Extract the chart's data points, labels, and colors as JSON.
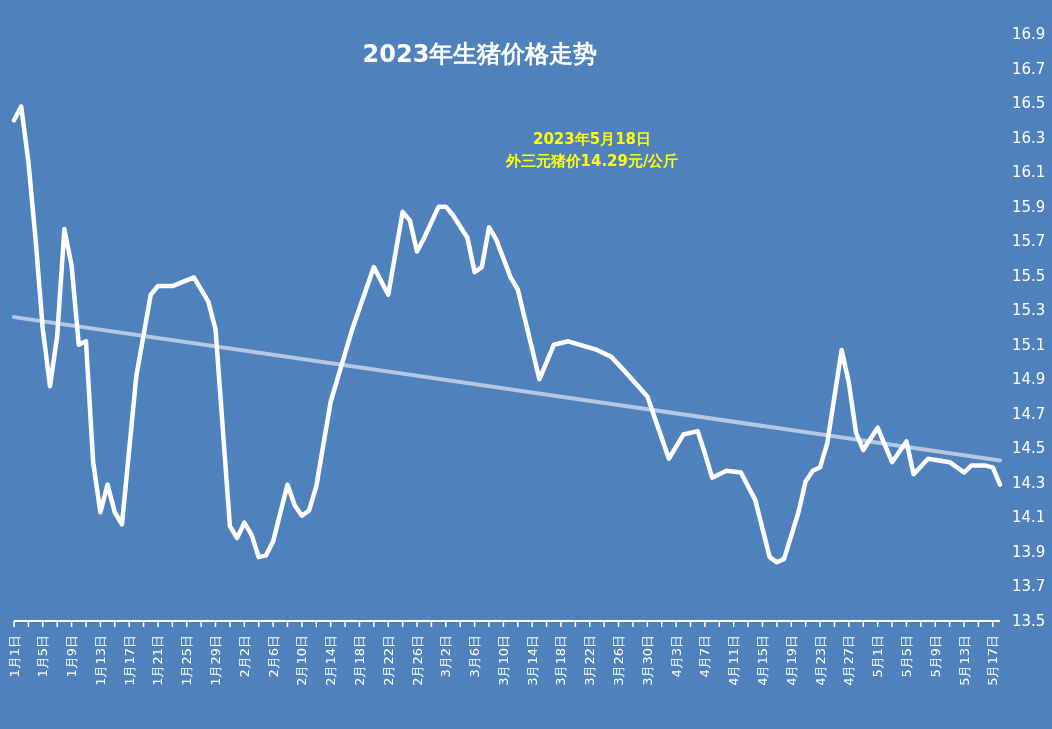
{
  "chart_data": {
    "type": "line",
    "title": "2023年生猪价格走势",
    "annotations": [
      "2023年5月18日",
      "外三元猪价14.29元/公斤"
    ],
    "xlim": [
      "--01-01",
      "--05-18"
    ],
    "xticks": [
      {
        "value": "--01-01",
        "label": "1月1日"
      },
      {
        "value": "--01-03",
        "label": null
      },
      {
        "value": "--01-05",
        "label": "1月5日"
      },
      {
        "value": "--01-07",
        "label": null
      },
      {
        "value": "--01-09",
        "label": "1月9日"
      },
      {
        "value": "--01-11",
        "label": null
      },
      {
        "value": "--01-13",
        "label": "1月13日"
      },
      {
        "value": "--01-15",
        "label": null
      },
      {
        "value": "--01-17",
        "label": "1月17日"
      },
      {
        "value": "--01-19",
        "label": null
      },
      {
        "value": "--01-21",
        "label": "1月21日"
      },
      {
        "value": "--01-23",
        "label": null
      },
      {
        "value": "--01-25",
        "label": "1月25日"
      },
      {
        "value": "--01-27",
        "label": null
      },
      {
        "value": "--01-29",
        "label": "1月29日"
      },
      {
        "value": "--01-31",
        "label": null
      },
      {
        "value": "--02-02",
        "label": "2月2日"
      },
      {
        "value": "--02-04",
        "label": null
      },
      {
        "value": "--02-06",
        "label": "2月6日"
      },
      {
        "value": "--02-08",
        "label": null
      },
      {
        "value": "--02-10",
        "label": "2月10日"
      },
      {
        "value": "--02-12",
        "label": null
      },
      {
        "value": "--02-14",
        "label": "2月14日"
      },
      {
        "value": "--02-16",
        "label": null
      },
      {
        "value": "--02-18",
        "label": "2月18日"
      },
      {
        "value": "--02-20",
        "label": null
      },
      {
        "value": "--02-22",
        "label": "2月22日"
      },
      {
        "value": "--02-24",
        "label": null
      },
      {
        "value": "--02-26",
        "label": "2月26日"
      },
      {
        "value": "--02-28",
        "label": null
      },
      {
        "value": "--03-02",
        "label": "3月2日"
      },
      {
        "value": "--03-04",
        "label": null
      },
      {
        "value": "--03-06",
        "label": "3月6日"
      },
      {
        "value": "--03-08",
        "label": null
      },
      {
        "value": "--03-10",
        "label": "3月10日"
      },
      {
        "value": "--03-12",
        "label": null
      },
      {
        "value": "--03-14",
        "label": "3月14日"
      },
      {
        "value": "--03-16",
        "label": null
      },
      {
        "value": "--03-18",
        "label": "3月18日"
      },
      {
        "value": "--03-20",
        "label": null
      },
      {
        "value": "--03-22",
        "label": "3月22日"
      },
      {
        "value": "--03-24",
        "label": null
      },
      {
        "value": "--03-26",
        "label": "3月26日"
      },
      {
        "value": "--03-28",
        "label": null
      },
      {
        "value": "--03-30",
        "label": "3月30日"
      },
      {
        "value": "--04-01",
        "label": null
      },
      {
        "value": "--04-03",
        "label": "4月3日"
      },
      {
        "value": "--04-05",
        "label": null
      },
      {
        "value": "--04-07",
        "label": "4月7日"
      },
      {
        "value": "--04-09",
        "label": null
      },
      {
        "value": "--04-11",
        "label": "4月11日"
      },
      {
        "value": "--04-13",
        "label": null
      },
      {
        "value": "--04-15",
        "label": "4月15日"
      },
      {
        "value": "--04-17",
        "label": null
      },
      {
        "value": "--04-19",
        "label": "4月19日"
      },
      {
        "value": "--04-21",
        "label": null
      },
      {
        "value": "--04-23",
        "label": "4月23日"
      },
      {
        "value": "--04-25",
        "label": null
      },
      {
        "value": "--04-27",
        "label": "4月27日"
      },
      {
        "value": "--04-29",
        "label": null
      },
      {
        "value": "--05-01",
        "label": "5月1日"
      },
      {
        "value": "--05-03",
        "label": null
      },
      {
        "value": "--05-05",
        "label": "5月5日"
      },
      {
        "value": "--05-07",
        "label": null
      },
      {
        "value": "--05-09",
        "label": "5月9日"
      },
      {
        "value": "--05-11",
        "label": null
      },
      {
        "value": "--05-13",
        "label": "5月13日"
      },
      {
        "value": "--05-15",
        "label": null
      },
      {
        "value": "--05-17",
        "label": "5月17日"
      }
    ],
    "ylim": [
      13.5,
      16.9
    ],
    "yticks": [
      {
        "value": 13.5,
        "label": "13.5"
      },
      {
        "value": 13.7,
        "label": "13.7"
      },
      {
        "value": 13.9,
        "label": "13.9"
      },
      {
        "value": 14.1,
        "label": "14.1"
      },
      {
        "value": 14.3,
        "label": "14.3"
      },
      {
        "value": 14.5,
        "label": "14.5"
      },
      {
        "value": 14.7,
        "label": "14.7"
      },
      {
        "value": 14.9,
        "label": "14.9"
      },
      {
        "value": 15.1,
        "label": "15.1"
      },
      {
        "value": 15.3,
        "label": "15.3"
      },
      {
        "value": 15.5,
        "label": "15.5"
      },
      {
        "value": 15.7,
        "label": "15.7"
      },
      {
        "value": 15.9,
        "label": "15.9"
      },
      {
        "value": 16.1,
        "label": "16.1"
      },
      {
        "value": 16.3,
        "label": "16.3"
      },
      {
        "value": 16.5,
        "label": "16.5"
      },
      {
        "value": 16.7,
        "label": "16.7"
      },
      {
        "value": 16.9,
        "label": "16.9"
      }
    ],
    "series": [
      {
        "type": "line",
        "color": "#ffffff",
        "x": [
          "--01-01",
          "--01-02",
          "--01-03",
          "--01-04",
          "--01-05",
          "--01-06",
          "--01-07",
          "--01-08",
          "--01-09",
          "--01-10",
          "--01-11",
          "--01-12",
          "--01-13",
          "--01-14",
          "--01-15",
          "--01-16",
          "--01-18",
          "--01-20",
          "--01-21",
          "--01-23",
          "--01-26",
          "--01-28",
          "--01-29",
          "--01-31",
          "--02-01",
          "--02-02",
          "--02-03",
          "--02-04",
          "--02-05",
          "--02-06",
          "--02-08",
          "--02-09",
          "--02-10",
          "--02-11",
          "--02-12",
          "--02-14",
          "--02-17",
          "--02-20",
          "--02-22",
          "--02-24",
          "--02-25",
          "--02-26",
          "--02-27",
          "--03-01",
          "--03-02",
          "--03-03",
          "--03-05",
          "--03-06",
          "--03-07",
          "--03-08",
          "--03-09",
          "--03-11",
          "--03-12",
          "--03-15",
          "--03-17",
          "--03-19",
          "--03-23",
          "--03-25",
          "--03-27",
          "--03-30",
          "--04-02",
          "--04-04",
          "--04-06",
          "--04-07",
          "--04-08",
          "--04-10",
          "--04-12",
          "--04-14",
          "--04-16",
          "--04-17",
          "--04-18",
          "--04-20",
          "--04-21",
          "--04-22",
          "--04-23",
          "--04-24",
          "--04-26",
          "--04-27",
          "--04-28",
          "--04-29",
          "--05-01",
          "--05-03",
          "--05-05",
          "--05-06",
          "--05-08",
          "--05-11",
          "--05-13",
          "--05-14",
          "--05-16",
          "--05-17",
          "--05-18"
        ],
        "values": [
          16.4,
          16.48,
          16.16,
          15.71,
          15.19,
          14.86,
          15.15,
          15.77,
          15.56,
          15.1,
          15.12,
          14.42,
          14.13,
          14.29,
          14.13,
          14.06,
          14.92,
          15.39,
          15.44,
          15.44,
          15.49,
          15.35,
          15.19,
          14.05,
          13.98,
          14.07,
          14.0,
          13.87,
          13.88,
          13.96,
          14.29,
          14.17,
          14.11,
          14.14,
          14.28,
          14.77,
          15.19,
          15.55,
          15.39,
          15.87,
          15.82,
          15.64,
          15.72,
          15.9,
          15.9,
          15.85,
          15.72,
          15.52,
          15.55,
          15.78,
          15.71,
          15.49,
          15.42,
          14.9,
          15.1,
          15.12,
          15.07,
          15.03,
          14.94,
          14.8,
          14.44,
          14.58,
          14.6,
          14.47,
          14.33,
          14.37,
          14.36,
          14.2,
          13.87,
          13.84,
          13.86,
          14.13,
          14.31,
          14.37,
          14.39,
          14.53,
          15.07,
          14.88,
          14.59,
          14.49,
          14.62,
          14.42,
          14.54,
          14.35,
          14.44,
          14.42,
          14.36,
          14.4,
          14.4,
          14.39,
          14.29
        ]
      },
      {
        "type": "line",
        "color": "#b4c8e4",
        "x": [
          "--01-01",
          "--05-18"
        ],
        "values": [
          15.26,
          14.43
        ]
      }
    ]
  }
}
